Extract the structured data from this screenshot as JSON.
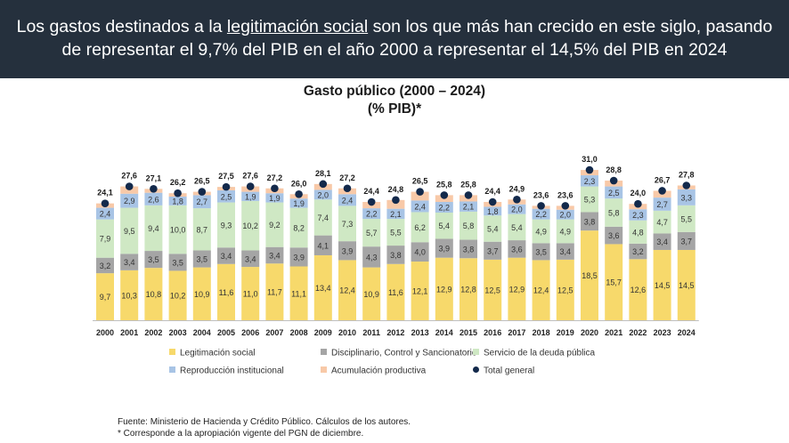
{
  "banner": {
    "part1": "Los gastos destinados a la ",
    "highlight": "legitimación social",
    "part2": " son los que más han crecido en este siglo, pasando",
    "line2": "de representar el 9,7% del PIB en el año 2000 a representar el 14,5% del PIB en 2024"
  },
  "chart_data": {
    "type": "bar",
    "stacked": true,
    "title": "Gasto público (2000 – 2024)",
    "subtitle": "(% PIB)*",
    "categories": [
      "2000",
      "2001",
      "2002",
      "2003",
      "2004",
      "2005",
      "2006",
      "2007",
      "2008",
      "2009",
      "2010",
      "2011",
      "2012",
      "2013",
      "2014",
      "2015",
      "2016",
      "2017",
      "2018",
      "2019",
      "2020",
      "2021",
      "2022",
      "2023",
      "2024"
    ],
    "series": [
      {
        "name": "Legitimación social",
        "color": "#f7d96b",
        "values": [
          9.7,
          10.3,
          10.8,
          10.2,
          10.9,
          11.6,
          11.0,
          11.7,
          11.1,
          13.4,
          12.4,
          10.9,
          11.6,
          12.1,
          12.9,
          12.8,
          12.5,
          12.9,
          12.4,
          12.5,
          18.5,
          15.7,
          12.6,
          14.5,
          14.5
        ]
      },
      {
        "name": "Disciplinario, Control y Sancionatorio",
        "color": "#a5a5a5",
        "values": [
          3.2,
          3.4,
          3.5,
          3.5,
          3.5,
          3.4,
          3.4,
          3.4,
          3.9,
          4.1,
          3.9,
          4.3,
          3.8,
          4.0,
          3.9,
          3.8,
          3.7,
          3.6,
          3.5,
          3.4,
          3.8,
          3.6,
          3.2,
          3.4,
          3.7
        ]
      },
      {
        "name": "Servicio de la deuda pública",
        "color": "#cfe8c4",
        "values": [
          7.9,
          9.5,
          9.4,
          10.0,
          8.7,
          9.3,
          10.2,
          9.2,
          8.2,
          7.4,
          7.3,
          5.7,
          5.5,
          6.2,
          5.4,
          5.8,
          5.4,
          5.4,
          4.9,
          4.9,
          5.3,
          5.8,
          4.8,
          4.7,
          5.5
        ]
      },
      {
        "name": "Reproducción institucional",
        "color": "#a8c4e5",
        "values": [
          2.4,
          2.9,
          2.6,
          1.8,
          2.7,
          2.5,
          1.9,
          1.9,
          1.9,
          2.0,
          2.4,
          2.2,
          2.1,
          2.4,
          2.2,
          2.1,
          1.8,
          2.0,
          2.2,
          2.0,
          2.3,
          2.5,
          2.3,
          2.7,
          3.3
        ]
      },
      {
        "name": "Acumulación productiva",
        "color": "#f8c9a8",
        "values": [
          0.9,
          1.5,
          0.8,
          0.7,
          0.7,
          0.7,
          1.1,
          1.0,
          0.9,
          1.2,
          1.2,
          1.3,
          1.8,
          1.8,
          1.4,
          1.3,
          1.0,
          1.0,
          0.6,
          0.8,
          1.1,
          1.2,
          1.1,
          1.4,
          0.8
        ]
      }
    ],
    "total": {
      "name": "Total general",
      "color": "#13294b",
      "values": [
        24.1,
        27.6,
        27.1,
        26.2,
        26.5,
        27.5,
        27.6,
        27.2,
        26.0,
        28.1,
        27.2,
        24.4,
        24.8,
        26.5,
        25.8,
        25.8,
        24.4,
        24.9,
        23.6,
        23.6,
        31.0,
        28.8,
        24.0,
        26.7,
        27.8
      ]
    },
    "decimal_separator": ",",
    "legend_position": "bottom",
    "grid": false
  },
  "footer": {
    "source": "Fuente: Ministerio de Hacienda y Crédito Público. Cálculos de los autores.",
    "note": "* Corresponde a la apropiación vigente del PGN de diciembre."
  }
}
